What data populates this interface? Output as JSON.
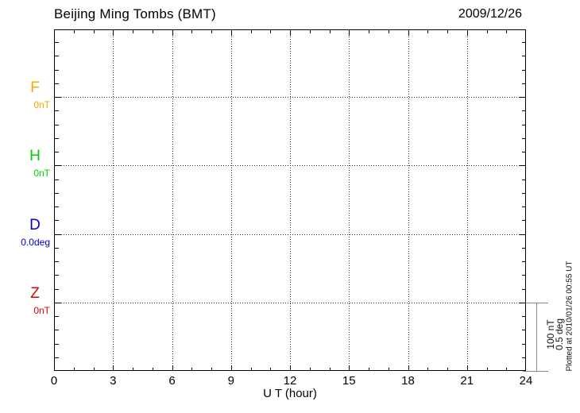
{
  "header": {
    "title": "Beijing Ming Tombs (BMT)",
    "date": "2009/12/26"
  },
  "chart_data": {
    "type": "line",
    "title": "Beijing Ming Tombs (BMT)",
    "date": "2009/12/26",
    "xlabel": "U T (hour)",
    "xlim": [
      0,
      24
    ],
    "x_major_ticks": [
      0,
      3,
      6,
      9,
      12,
      15,
      18,
      21,
      24
    ],
    "x_minor_tick_step_hours": 1,
    "grid": "dotted vertical lines every 3 hours; dotted horizontal line at each component baseline",
    "series": [
      {
        "name": "F",
        "baseline_label": "0nT",
        "unit": "nT",
        "color": "#FFA500",
        "values": []
      },
      {
        "name": "H",
        "baseline_label": "0nT",
        "unit": "nT",
        "color": "#00CC00",
        "values": []
      },
      {
        "name": "D",
        "baseline_label": "0.0deg",
        "unit": "deg",
        "color": "#0000CC",
        "values": []
      },
      {
        "name": "Z",
        "baseline_label": "0nT",
        "unit": "nT",
        "color": "#E00000",
        "values": []
      }
    ],
    "scale_bar": {
      "label_lines": [
        "100 nT",
        "0.5 deg"
      ]
    },
    "footnote": "Plotted at 2010/01/26 00:55 UT"
  }
}
